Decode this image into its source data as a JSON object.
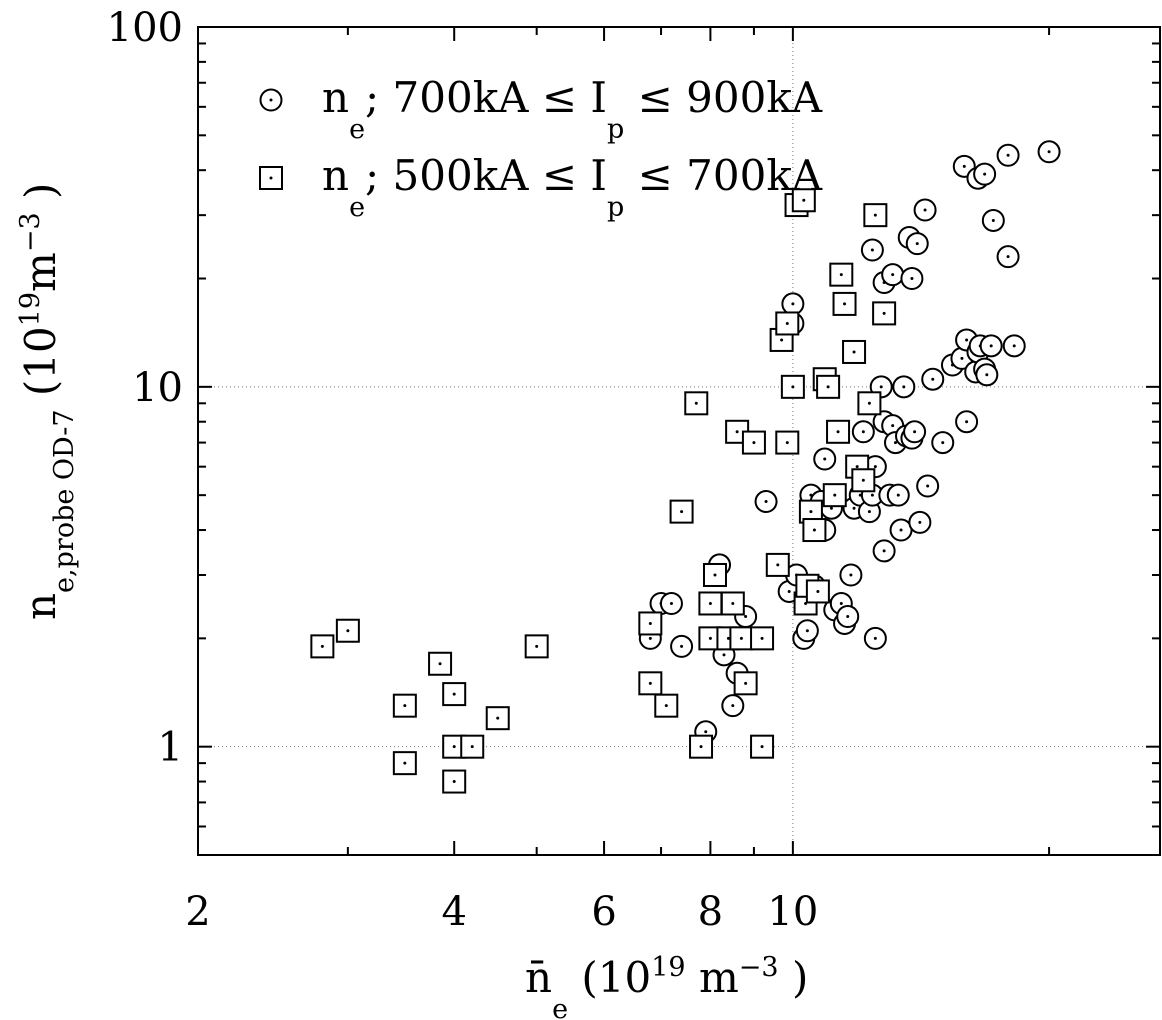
{
  "chart_data": {
    "type": "scatter",
    "title": "",
    "xlabel": {
      "main": "n̄",
      "sub": "e",
      "units": "(10",
      "exp": "19",
      "units2": " m",
      "exp2": "−3",
      "close": " )"
    },
    "ylabel": {
      "main": "n",
      "sub": "e,probe OD-7",
      "units": "(10",
      "exp": "19",
      "units2": "m",
      "exp2": "−3",
      "close": " )"
    },
    "x_scale": "log",
    "y_scale": "log",
    "xlim": [
      2,
      27
    ],
    "ylim": [
      0.5,
      100
    ],
    "x_tick_labels": [
      "2",
      "4",
      "6",
      "8",
      "10"
    ],
    "x_ticks": [
      2,
      4,
      6,
      8,
      10
    ],
    "y_tick_labels": [
      "1",
      "10",
      "100"
    ],
    "y_ticks": [
      1,
      10,
      100
    ],
    "grid": {
      "x": [
        10
      ],
      "y": [
        1,
        10
      ]
    },
    "legend_position": "top-left",
    "series": [
      {
        "name": "n",
        "legend": {
          "a": "n",
          "a_sub": "e",
          "b": "; 700kA ≤ I",
          "b_sub": "p",
          "c": " ≤ 900kA"
        },
        "marker": "circle",
        "points": [
          [
            7.0,
            2.5
          ],
          [
            7.2,
            2.5
          ],
          [
            6.8,
            2.0
          ],
          [
            7.4,
            1.9
          ],
          [
            7.9,
            1.1
          ],
          [
            8.2,
            3.2
          ],
          [
            8.3,
            1.8
          ],
          [
            8.6,
            1.6
          ],
          [
            8.5,
            1.3
          ],
          [
            8.8,
            2.3
          ],
          [
            9.2,
            2.0
          ],
          [
            9.3,
            4.8
          ],
          [
            9.9,
            2.7
          ],
          [
            10.1,
            3.0
          ],
          [
            10.3,
            2.0
          ],
          [
            10.4,
            2.1
          ],
          [
            10.6,
            2.8
          ],
          [
            10.5,
            5.0
          ],
          [
            10.8,
            4.8
          ],
          [
            10.9,
            4.0
          ],
          [
            10.9,
            6.3
          ],
          [
            11.1,
            4.6
          ],
          [
            11.2,
            2.4
          ],
          [
            11.4,
            2.5
          ],
          [
            11.5,
            2.2
          ],
          [
            11.6,
            2.3
          ],
          [
            11.7,
            3.0
          ],
          [
            11.8,
            4.6
          ],
          [
            12.0,
            5.0
          ],
          [
            12.1,
            7.5
          ],
          [
            12.3,
            4.5
          ],
          [
            12.4,
            5.0
          ],
          [
            12.5,
            6.0
          ],
          [
            12.5,
            2.0
          ],
          [
            12.7,
            10.0
          ],
          [
            12.8,
            3.5
          ],
          [
            12.8,
            8.0
          ],
          [
            13.0,
            5.0
          ],
          [
            13.1,
            7.8
          ],
          [
            13.2,
            7.0
          ],
          [
            13.3,
            5.0
          ],
          [
            13.4,
            4.0
          ],
          [
            13.5,
            10.0
          ],
          [
            13.6,
            7.3
          ],
          [
            13.8,
            7.2
          ],
          [
            13.9,
            7.5
          ],
          [
            14.1,
            4.2
          ],
          [
            14.4,
            5.3
          ],
          [
            14.6,
            10.5
          ],
          [
            15.0,
            7.0
          ],
          [
            15.4,
            11.5
          ],
          [
            15.8,
            12.0
          ],
          [
            16.0,
            8.0
          ],
          [
            16.0,
            13.5
          ],
          [
            16.4,
            11.0
          ],
          [
            16.5,
            12.5
          ],
          [
            16.6,
            13.0
          ],
          [
            16.8,
            11.2
          ],
          [
            16.9,
            10.8
          ],
          [
            17.1,
            13.0
          ],
          [
            18.2,
            13.0
          ],
          [
            10.0,
            17.0
          ],
          [
            10.0,
            15.0
          ],
          [
            12.4,
            24.0
          ],
          [
            12.8,
            19.5
          ],
          [
            13.1,
            20.5
          ],
          [
            13.8,
            20.0
          ],
          [
            13.7,
            26.0
          ],
          [
            14.0,
            25.0
          ],
          [
            14.3,
            31.0
          ],
          [
            15.9,
            41.0
          ],
          [
            16.5,
            38.0
          ],
          [
            16.8,
            39.0
          ],
          [
            17.2,
            29.0
          ],
          [
            17.9,
            44.0
          ],
          [
            17.9,
            23.0
          ],
          [
            20.0,
            45.0
          ]
        ]
      },
      {
        "name": "n",
        "legend": {
          "a": "n",
          "a_sub": "e",
          "b": "; 500kA ≤ I",
          "b_sub": "p",
          "c": " ≤ 700kA"
        },
        "marker": "square",
        "points": [
          [
            2.8,
            1.9
          ],
          [
            3.0,
            2.1
          ],
          [
            3.5,
            1.3
          ],
          [
            3.5,
            0.9
          ],
          [
            3.85,
            1.7
          ],
          [
            4.0,
            1.4
          ],
          [
            4.0,
            1.0
          ],
          [
            4.0,
            0.8
          ],
          [
            4.2,
            1.0
          ],
          [
            4.5,
            1.2
          ],
          [
            5.0,
            1.9
          ],
          [
            6.8,
            2.2
          ],
          [
            6.8,
            1.5
          ],
          [
            7.1,
            1.3
          ],
          [
            7.4,
            4.5
          ],
          [
            7.7,
            9.0
          ],
          [
            7.8,
            1.0
          ],
          [
            8.0,
            2.0
          ],
          [
            8.0,
            2.5
          ],
          [
            8.1,
            3.0
          ],
          [
            8.4,
            2.0
          ],
          [
            8.5,
            2.5
          ],
          [
            8.6,
            7.5
          ],
          [
            8.7,
            2.0
          ],
          [
            8.8,
            1.5
          ],
          [
            9.0,
            7.0
          ],
          [
            9.2,
            1.0
          ],
          [
            9.2,
            2.0
          ],
          [
            9.6,
            3.2
          ],
          [
            9.7,
            13.5
          ],
          [
            9.85,
            15.0
          ],
          [
            9.85,
            7.0
          ],
          [
            10.0,
            10.0
          ],
          [
            10.1,
            32.0
          ],
          [
            10.3,
            33.0
          ],
          [
            10.35,
            2.5
          ],
          [
            10.4,
            2.8
          ],
          [
            10.5,
            4.5
          ],
          [
            10.6,
            4.0
          ],
          [
            10.7,
            2.7
          ],
          [
            10.9,
            10.5
          ],
          [
            11.0,
            10.0
          ],
          [
            11.2,
            5.0
          ],
          [
            11.3,
            7.5
          ],
          [
            11.4,
            20.5
          ],
          [
            11.5,
            17.0
          ],
          [
            11.8,
            12.5
          ],
          [
            11.9,
            6.0
          ],
          [
            12.1,
            5.5
          ],
          [
            12.3,
            9.0
          ],
          [
            12.5,
            30.0
          ],
          [
            12.8,
            16.0
          ]
        ]
      }
    ]
  }
}
